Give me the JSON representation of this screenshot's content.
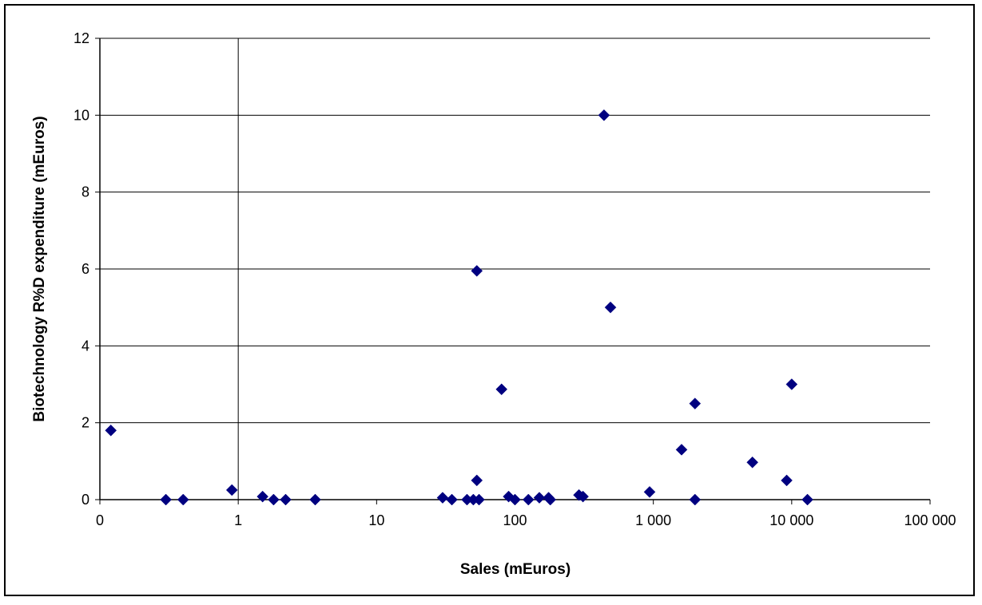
{
  "chart_data": {
    "type": "scatter",
    "title": "",
    "xlabel": "Sales (mEuros)",
    "ylabel": "Biotechnology R%D expenditure (mEuros)",
    "x_scale": "log",
    "xlim": [
      0.1,
      100000
    ],
    "ylim": [
      0,
      12
    ],
    "x_ticks": [
      {
        "value": 0.1,
        "label": "0"
      },
      {
        "value": 1,
        "label": "1"
      },
      {
        "value": 10,
        "label": "10"
      },
      {
        "value": 100,
        "label": "100"
      },
      {
        "value": 1000,
        "label": "1 000"
      },
      {
        "value": 10000,
        "label": "10 000"
      },
      {
        "value": 100000,
        "label": "100 000"
      }
    ],
    "y_ticks": [
      {
        "value": 0,
        "label": "0"
      },
      {
        "value": 2,
        "label": "2"
      },
      {
        "value": 4,
        "label": "4"
      },
      {
        "value": 6,
        "label": "6"
      },
      {
        "value": 8,
        "label": "8"
      },
      {
        "value": 10,
        "label": "10"
      },
      {
        "value": 12,
        "label": "12"
      }
    ],
    "grid": {
      "horizontal": true,
      "vertical_at_x": 1
    },
    "legend": "none",
    "marker": "diamond",
    "marker_color": "#000080",
    "series": [
      {
        "points": [
          [
            0.12,
            1.8
          ],
          [
            0.3,
            0.0
          ],
          [
            0.4,
            0.0
          ],
          [
            0.9,
            0.25
          ],
          [
            1.5,
            0.08
          ],
          [
            1.8,
            0.0
          ],
          [
            2.2,
            0.0
          ],
          [
            3.6,
            0.0
          ],
          [
            30,
            0.05
          ],
          [
            35,
            0.0
          ],
          [
            45,
            0.0
          ],
          [
            50,
            0.0
          ],
          [
            53,
            5.95
          ],
          [
            53,
            0.5
          ],
          [
            55,
            0.0
          ],
          [
            80,
            2.87
          ],
          [
            90,
            0.08
          ],
          [
            100,
            0.0
          ],
          [
            125,
            0.0
          ],
          [
            150,
            0.05
          ],
          [
            175,
            0.05
          ],
          [
            180,
            0.0
          ],
          [
            290,
            0.12
          ],
          [
            310,
            0.08
          ],
          [
            440,
            10.0
          ],
          [
            490,
            5.0
          ],
          [
            940,
            0.2
          ],
          [
            1600,
            1.3
          ],
          [
            2000,
            2.5
          ],
          [
            2000,
            0.0
          ],
          [
            5200,
            0.97
          ],
          [
            9200,
            0.5
          ],
          [
            10000,
            3.0
          ],
          [
            13000,
            0.0
          ]
        ]
      }
    ]
  }
}
